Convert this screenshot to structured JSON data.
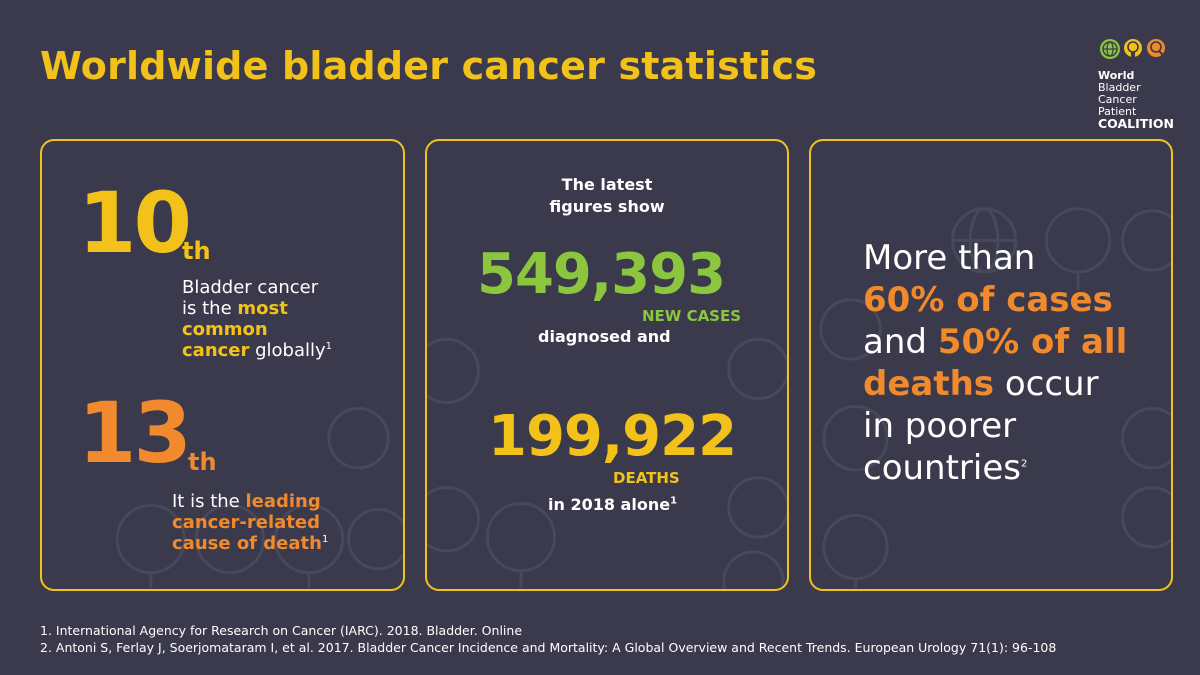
{
  "title": "Worldwide bladder cancer statistics",
  "logo": {
    "line1_bold": "World",
    "line1_rest": " Bladder",
    "line2": "Cancer Patient",
    "line3": "COALITION"
  },
  "card1": {
    "rank1": "10",
    "rank1_suffix": "th",
    "rank1_desc": {
      "part1": "Bladder cancer",
      "part2": "is the ",
      "highlight1": "most",
      "highlight2": "common",
      "highlight3": "cancer",
      "part3": " globally",
      "fn": "1"
    },
    "rank2": "13",
    "rank2_suffix": "th",
    "rank2_desc": {
      "part1": "It is the ",
      "highlight1": "leading",
      "highlight2": "cancer-related",
      "highlight3": "cause of death",
      "fn": "1"
    }
  },
  "card2": {
    "intro_line1": "The latest",
    "intro_line2": "figures show",
    "cases_value": "549,393",
    "cases_label": "NEW CASES",
    "cases_note": "diagnosed and",
    "deaths_value": "199,922",
    "deaths_label": "DEATHS",
    "deaths_note": "in 2018 alone",
    "fn": "1"
  },
  "card3": {
    "line1": "More than",
    "highlight1": "60% of cases",
    "line3a": "and ",
    "highlight2": "50% of all",
    "highlight3": "deaths",
    "line4b": " occur",
    "line5": "in poorer",
    "line6": "countries",
    "fn": "2"
  },
  "references": [
    "1. International Agency for Research on Cancer (IARC). 2018. Bladder. Online",
    "2. Antoni S, Ferlay J, Soerjomataram I, et al. 2017. Bladder Cancer Incidence and Mortality: A Global Overview and Recent Trends. European Urology 71(1): 96-108"
  ],
  "colors": {
    "background": "#3a3a4c",
    "yellow": "#f2c21a",
    "orange": "#f08a2c",
    "green": "#8cc63f"
  }
}
